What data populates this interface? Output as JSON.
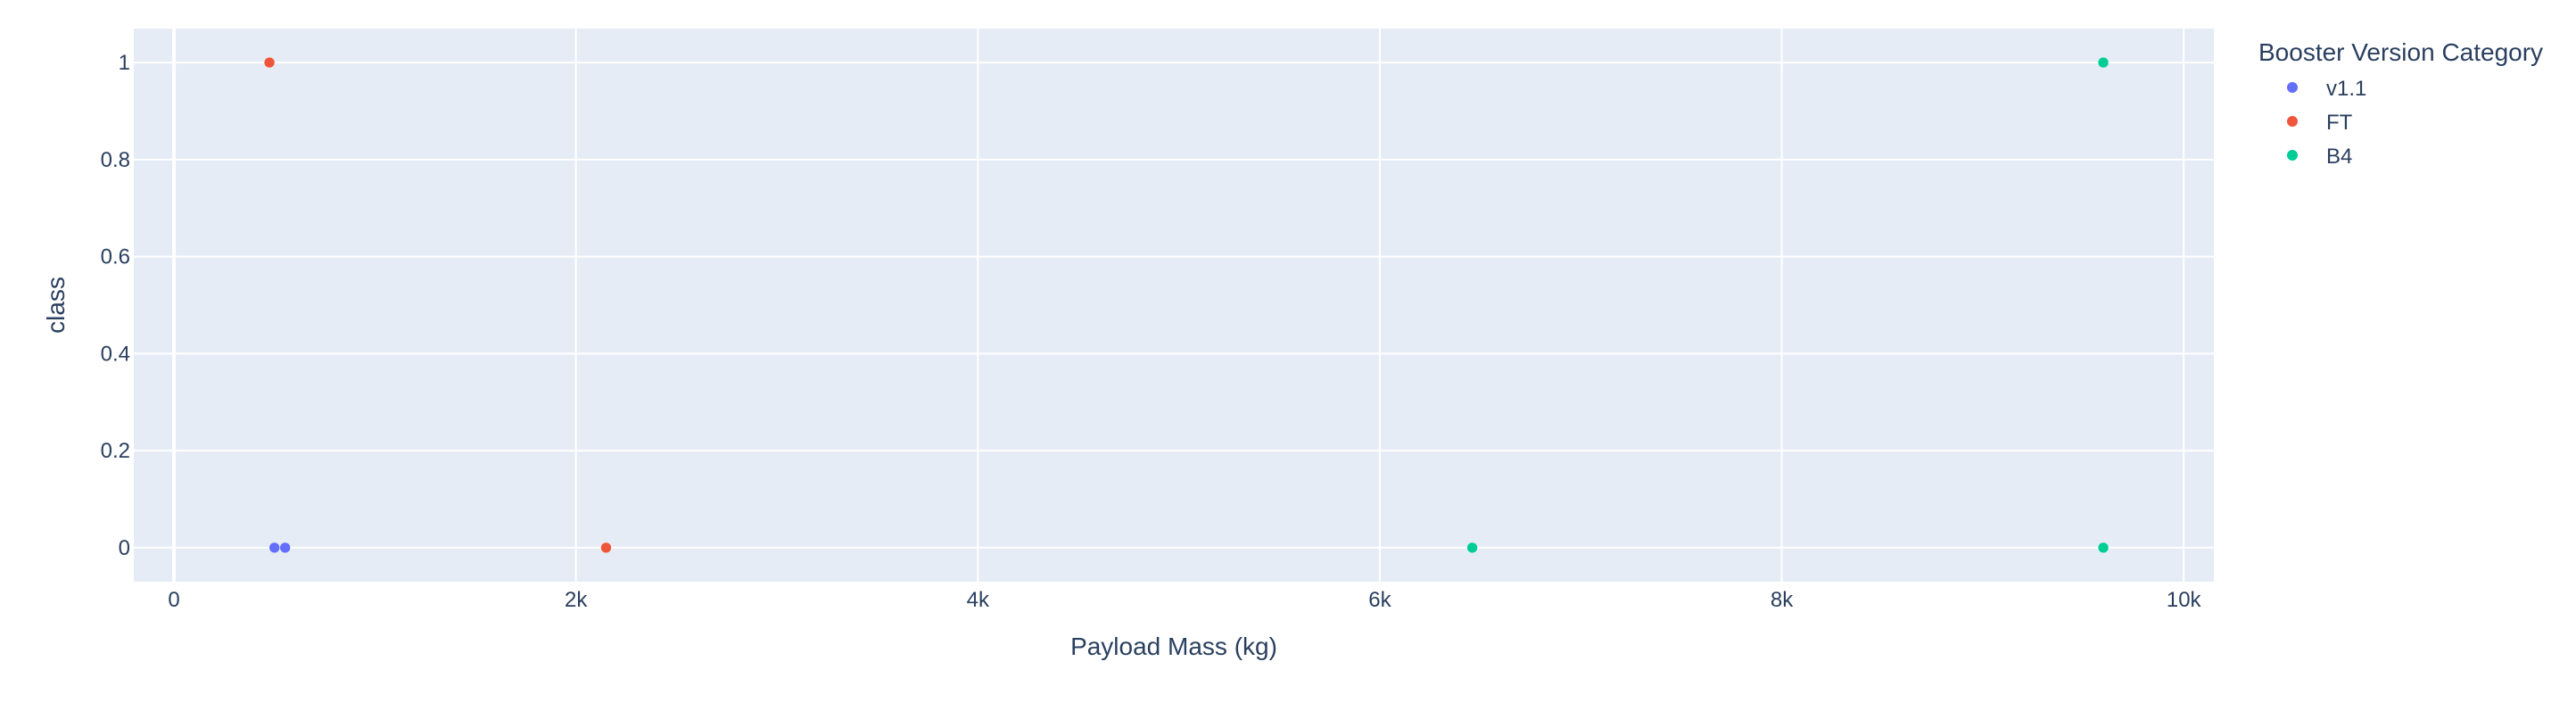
{
  "chart_data": {
    "type": "scatter",
    "title": "",
    "xlabel": "Payload Mass (kg)",
    "ylabel": "class",
    "xlim": [
      -200,
      10150
    ],
    "ylim": [
      -0.07,
      1.07
    ],
    "x_ticks": [
      0,
      2000,
      4000,
      6000,
      8000,
      10000
    ],
    "x_tick_labels": [
      "0",
      "2k",
      "4k",
      "6k",
      "8k",
      "10k"
    ],
    "y_ticks": [
      0,
      0.2,
      0.4,
      0.6,
      0.8,
      1
    ],
    "y_tick_labels": [
      "0",
      "0.2",
      "0.4",
      "0.6",
      "0.8",
      "1"
    ],
    "grid": true,
    "legend": {
      "title": "Booster Version Category",
      "placement": "right"
    },
    "series": [
      {
        "name": "v1.1",
        "color": "#636efa",
        "points": [
          {
            "x": 500,
            "y": 0
          },
          {
            "x": 553,
            "y": 0
          }
        ]
      },
      {
        "name": "FT",
        "color": "#ef553b",
        "points": [
          {
            "x": 475,
            "y": 1
          },
          {
            "x": 2150,
            "y": 0
          }
        ]
      },
      {
        "name": "B4",
        "color": "#00cc96",
        "points": [
          {
            "x": 9600,
            "y": 1
          },
          {
            "x": 6460,
            "y": 0
          },
          {
            "x": 9600,
            "y": 0
          }
        ]
      }
    ],
    "plot_bg": "#e5ecf6",
    "grid_color": "#ffffff",
    "text_color": "#2a3f5f"
  }
}
